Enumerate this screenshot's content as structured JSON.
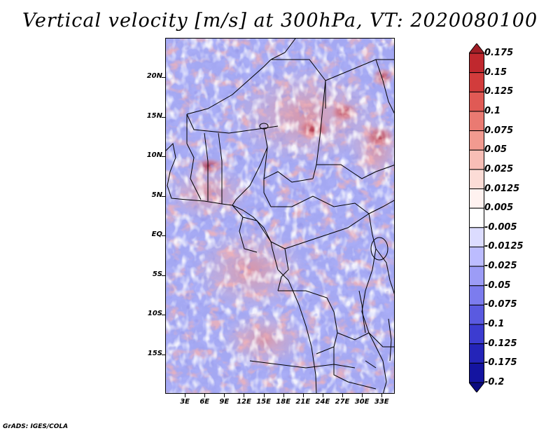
{
  "title": "Vertical velocity [m/s] at 300hPa, VT: 2020080100",
  "credit": "GrADS: IGES/COLA",
  "map": {
    "region": "Central Africa",
    "lon_range": [
      0,
      35
    ],
    "lat_range": [
      -20,
      25
    ],
    "lat_ticks": [
      {
        "value": 20,
        "label": "20N"
      },
      {
        "value": 15,
        "label": "15N"
      },
      {
        "value": 10,
        "label": "10N"
      },
      {
        "value": 5,
        "label": "5N"
      },
      {
        "value": 0,
        "label": "EQ"
      },
      {
        "value": -5,
        "label": "5S"
      },
      {
        "value": -10,
        "label": "10S"
      },
      {
        "value": -15,
        "label": "15S"
      }
    ],
    "lon_ticks": [
      {
        "value": 3,
        "label": "3E"
      },
      {
        "value": 6,
        "label": "6E"
      },
      {
        "value": 9,
        "label": "9E"
      },
      {
        "value": 12,
        "label": "12E"
      },
      {
        "value": 15,
        "label": "15E"
      },
      {
        "value": 18,
        "label": "18E"
      },
      {
        "value": 21,
        "label": "21E"
      },
      {
        "value": 24,
        "label": "24E"
      },
      {
        "value": 27,
        "label": "27E"
      },
      {
        "value": 30,
        "label": "30E"
      },
      {
        "value": 33,
        "label": "33E"
      }
    ]
  },
  "colorbar": {
    "labels": [
      "0.175",
      "0.15",
      "0.125",
      "0.1",
      "0.075",
      "0.05",
      "0.025",
      "0.0125",
      "0.005",
      "-0.005",
      "-0.0125",
      "-0.025",
      "-0.05",
      "-0.075",
      "-0.1",
      "-0.125",
      "-0.175",
      "-0.2"
    ],
    "colors": [
      "#a01e26",
      "#c0282e",
      "#d23c3c",
      "#e05a55",
      "#ea7a72",
      "#f29a90",
      "#f8beb6",
      "#fcdcd6",
      "#fff2f0",
      "#ffffff",
      "#dcdcff",
      "#bcbcff",
      "#9c9cf6",
      "#7c7cee",
      "#5a5ae0",
      "#3c3cd0",
      "#2424b8",
      "#1414a0",
      "#0a0a80"
    ]
  },
  "field_colors": {
    "dominant_blue": "#9aa0f0",
    "light_blue": "#c8cafa",
    "white": "#f6f6ff",
    "light_red": "#f4b0ac",
    "red": "#e06a66",
    "dark_red": "#b02a36",
    "dark_blue": "#4a4ad0"
  }
}
